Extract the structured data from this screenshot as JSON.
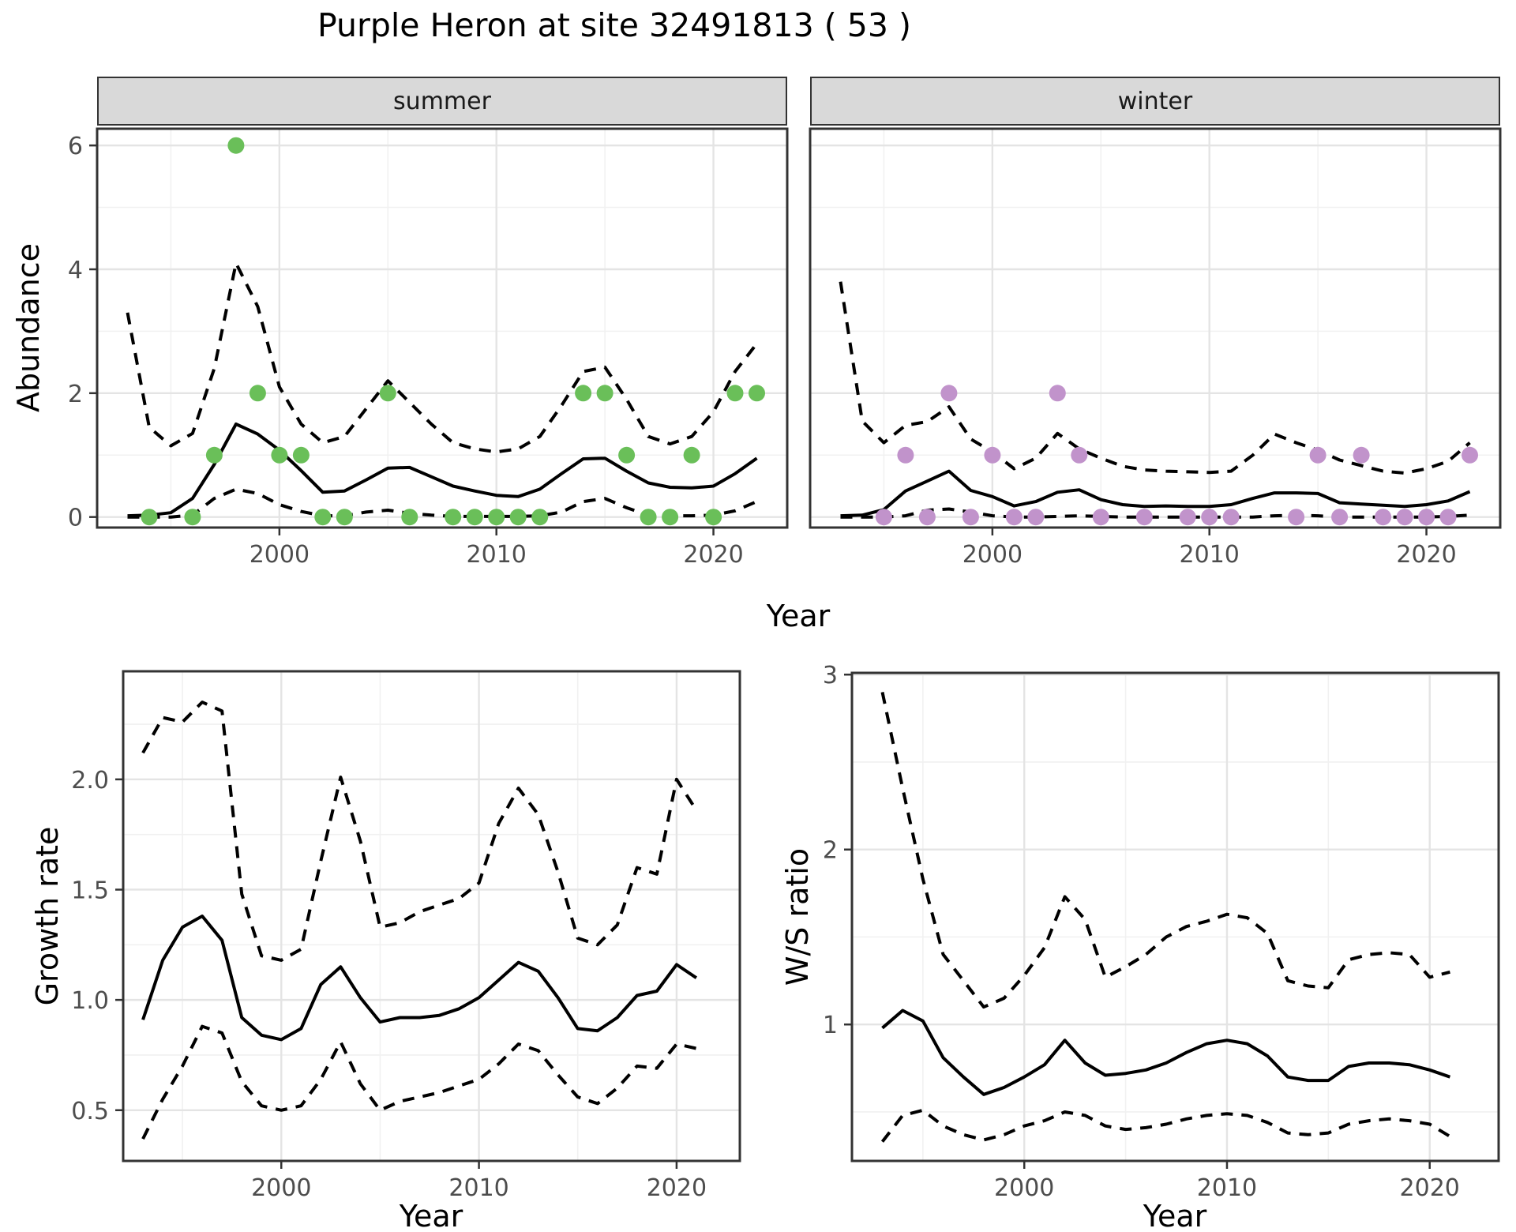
{
  "title": "Purple Heron at site 32491813 ( 53 )",
  "axis": {
    "x_title": "Year"
  },
  "colors": {
    "summer_points": "#6abf59",
    "winter_points": "#c193cb",
    "line": "#000000",
    "panel_border": "#333333",
    "grid_major": "#e4e4e4",
    "grid_minor": "#f1f1f1",
    "tick_text": "#4d4d4d",
    "strip_fill": "#d9d9d9"
  },
  "chart_data": [
    {
      "id": "summer",
      "type": "line",
      "facet_label": "summer",
      "ylabel": "Abundance",
      "xlabel": "Year",
      "xlim": [
        1991.6,
        2023.4
      ],
      "ylim": [
        -0.17,
        6.27
      ],
      "x_ticks": [
        2000,
        2010,
        2020
      ],
      "x_tick_labels": [
        "2000",
        "2010",
        "2020"
      ],
      "x_minor": [
        1995,
        2005,
        2015
      ],
      "y_ticks": [
        0,
        2,
        4,
        6
      ],
      "y_tick_labels": [
        "0",
        "2",
        "4",
        "6"
      ],
      "y_minor": [
        1,
        3,
        5
      ],
      "show_y_labels": true,
      "x": [
        1993,
        1994,
        1995,
        1996,
        1997,
        1998,
        1999,
        2000,
        2001,
        2002,
        2003,
        2004,
        2005,
        2006,
        2007,
        2008,
        2009,
        2010,
        2011,
        2012,
        2013,
        2014,
        2015,
        2016,
        2017,
        2018,
        2019,
        2020,
        2021,
        2022
      ],
      "series": [
        {
          "name": "fitted-median",
          "style": "solid",
          "values": [
            0.02,
            0.03,
            0.07,
            0.3,
            0.85,
            1.5,
            1.34,
            1.08,
            0.75,
            0.4,
            0.42,
            0.6,
            0.79,
            0.8,
            0.65,
            0.5,
            0.42,
            0.35,
            0.33,
            0.45,
            0.7,
            0.94,
            0.95,
            0.74,
            0.55,
            0.48,
            0.47,
            0.5,
            0.7,
            0.95
          ]
        },
        {
          "name": "upper-95ci",
          "style": "dashed",
          "values": [
            3.3,
            1.45,
            1.15,
            1.35,
            2.4,
            4.1,
            3.4,
            2.1,
            1.5,
            1.2,
            1.3,
            1.75,
            2.2,
            1.85,
            1.5,
            1.2,
            1.1,
            1.05,
            1.1,
            1.3,
            1.8,
            2.35,
            2.42,
            1.9,
            1.3,
            1.18,
            1.3,
            1.7,
            2.35,
            2.8
          ]
        },
        {
          "name": "lower-95ci",
          "style": "dashed",
          "values": [
            0.0,
            0.0,
            0.0,
            0.03,
            0.3,
            0.45,
            0.38,
            0.2,
            0.09,
            0.02,
            0.02,
            0.08,
            0.11,
            0.06,
            0.03,
            0.01,
            0.01,
            0.01,
            0.01,
            0.02,
            0.08,
            0.25,
            0.3,
            0.15,
            0.03,
            0.02,
            0.02,
            0.03,
            0.1,
            0.25
          ]
        }
      ],
      "points": {
        "color_key": "summer_points",
        "values": [
          [
            1994,
            0
          ],
          [
            1996,
            0
          ],
          [
            1997,
            1
          ],
          [
            1998,
            6
          ],
          [
            1999,
            2
          ],
          [
            2000,
            1
          ],
          [
            2001,
            1
          ],
          [
            2002,
            0
          ],
          [
            2003,
            0
          ],
          [
            2005,
            2
          ],
          [
            2006,
            0
          ],
          [
            2008,
            0
          ],
          [
            2009,
            0
          ],
          [
            2010,
            0
          ],
          [
            2011,
            0
          ],
          [
            2012,
            0
          ],
          [
            2014,
            2
          ],
          [
            2015,
            2
          ],
          [
            2016,
            1
          ],
          [
            2017,
            0
          ],
          [
            2018,
            0
          ],
          [
            2019,
            1
          ],
          [
            2020,
            0
          ],
          [
            2021,
            2
          ],
          [
            2022,
            2
          ]
        ]
      }
    },
    {
      "id": "winter",
      "type": "line",
      "facet_label": "winter",
      "ylabel": "Abundance",
      "xlabel": "Year",
      "xlim": [
        1991.6,
        2023.4
      ],
      "ylim": [
        -0.17,
        6.27
      ],
      "x_ticks": [
        2000,
        2010,
        2020
      ],
      "x_tick_labels": [
        "2000",
        "2010",
        "2020"
      ],
      "x_minor": [
        1995,
        2005,
        2015
      ],
      "y_ticks": [
        0,
        2,
        4,
        6
      ],
      "y_tick_labels": [
        "0",
        "2",
        "4",
        "6"
      ],
      "y_minor": [
        1,
        3,
        5
      ],
      "show_y_labels": false,
      "x": [
        1993,
        1994,
        1995,
        1996,
        1997,
        1998,
        1999,
        2000,
        2001,
        2002,
        2003,
        2004,
        2005,
        2006,
        2007,
        2008,
        2009,
        2010,
        2011,
        2012,
        2013,
        2014,
        2015,
        2016,
        2017,
        2018,
        2019,
        2020,
        2021,
        2022
      ],
      "series": [
        {
          "name": "fitted-median",
          "style": "solid",
          "values": [
            0.02,
            0.03,
            0.12,
            0.42,
            0.58,
            0.74,
            0.43,
            0.33,
            0.18,
            0.25,
            0.4,
            0.44,
            0.28,
            0.2,
            0.17,
            0.18,
            0.17,
            0.17,
            0.2,
            0.3,
            0.39,
            0.39,
            0.38,
            0.23,
            0.21,
            0.19,
            0.17,
            0.2,
            0.26,
            0.41
          ]
        },
        {
          "name": "upper-95ci",
          "style": "dashed",
          "values": [
            3.8,
            1.55,
            1.2,
            1.48,
            1.54,
            1.78,
            1.26,
            1.05,
            0.78,
            0.95,
            1.35,
            1.1,
            0.95,
            0.82,
            0.76,
            0.74,
            0.73,
            0.72,
            0.74,
            1.0,
            1.34,
            1.2,
            1.08,
            0.92,
            0.83,
            0.74,
            0.71,
            0.78,
            0.9,
            1.2
          ]
        },
        {
          "name": "lower-95ci",
          "style": "dashed",
          "values": [
            0.0,
            0.0,
            0.0,
            0.02,
            0.11,
            0.13,
            0.08,
            0.02,
            0.0,
            0.0,
            0.01,
            0.02,
            0.01,
            0.0,
            0.0,
            0.0,
            0.0,
            0.0,
            0.0,
            0.0,
            0.02,
            0.03,
            0.02,
            0.0,
            0.0,
            0.0,
            0.0,
            0.0,
            0.01,
            0.03
          ]
        }
      ],
      "points": {
        "color_key": "winter_points",
        "values": [
          [
            1995,
            0
          ],
          [
            1996,
            1
          ],
          [
            1997,
            0
          ],
          [
            1998,
            2
          ],
          [
            1999,
            0
          ],
          [
            2000,
            1
          ],
          [
            2001,
            0
          ],
          [
            2002,
            0
          ],
          [
            2003,
            2
          ],
          [
            2004,
            1
          ],
          [
            2005,
            0
          ],
          [
            2007,
            0
          ],
          [
            2009,
            0
          ],
          [
            2010,
            0
          ],
          [
            2011,
            0
          ],
          [
            2014,
            0
          ],
          [
            2015,
            1
          ],
          [
            2016,
            0
          ],
          [
            2017,
            1
          ],
          [
            2018,
            0
          ],
          [
            2019,
            0
          ],
          [
            2020,
            0
          ],
          [
            2021,
            0
          ],
          [
            2022,
            1
          ]
        ]
      }
    },
    {
      "id": "growth",
      "type": "line",
      "facet_label": "",
      "ylabel": "Growth rate",
      "xlabel": "Year",
      "xlim": [
        1992.0,
        2023.2
      ],
      "ylim": [
        0.27,
        2.49
      ],
      "x_ticks": [
        2000,
        2010,
        2020
      ],
      "x_tick_labels": [
        "2000",
        "2010",
        "2020"
      ],
      "x_minor": [
        1995,
        2005,
        2015
      ],
      "y_ticks": [
        0.5,
        1.0,
        1.5,
        2.0
      ],
      "y_tick_labels": [
        "0.5",
        "1.0",
        "1.5",
        "2.0"
      ],
      "y_minor": [
        0.75,
        1.25,
        1.75,
        2.25
      ],
      "show_y_labels": true,
      "x": [
        1993,
        1994,
        1995,
        1996,
        1997,
        1998,
        1999,
        2000,
        2001,
        2002,
        2003,
        2004,
        2005,
        2006,
        2007,
        2008,
        2009,
        2010,
        2011,
        2012,
        2013,
        2014,
        2015,
        2016,
        2017,
        2018,
        2019,
        2020,
        2021
      ],
      "series": [
        {
          "name": "fitted-median",
          "style": "solid",
          "values": [
            0.91,
            1.18,
            1.33,
            1.38,
            1.27,
            0.92,
            0.84,
            0.82,
            0.87,
            1.07,
            1.15,
            1.01,
            0.9,
            0.92,
            0.92,
            0.93,
            0.96,
            1.01,
            1.09,
            1.17,
            1.13,
            1.01,
            0.87,
            0.86,
            0.92,
            1.02,
            1.04,
            1.16,
            1.1
          ]
        },
        {
          "name": "upper-95ci",
          "style": "dashed",
          "values": [
            2.12,
            2.28,
            2.26,
            2.35,
            2.31,
            1.48,
            1.2,
            1.18,
            1.23,
            1.63,
            2.01,
            1.72,
            1.33,
            1.35,
            1.4,
            1.43,
            1.46,
            1.53,
            1.8,
            1.96,
            1.84,
            1.58,
            1.28,
            1.25,
            1.34,
            1.6,
            1.57,
            2.0,
            1.86
          ]
        },
        {
          "name": "lower-95ci",
          "style": "dashed",
          "values": [
            0.37,
            0.55,
            0.7,
            0.88,
            0.85,
            0.63,
            0.52,
            0.5,
            0.52,
            0.64,
            0.81,
            0.62,
            0.5,
            0.54,
            0.56,
            0.58,
            0.61,
            0.64,
            0.71,
            0.8,
            0.77,
            0.66,
            0.56,
            0.53,
            0.6,
            0.7,
            0.69,
            0.8,
            0.78
          ]
        }
      ],
      "points": {
        "color_key": "",
        "values": []
      }
    },
    {
      "id": "ws",
      "type": "line",
      "facet_label": "",
      "ylabel": "W/S ratio",
      "xlabel": "Year",
      "xlim": [
        1991.5,
        2023.4
      ],
      "ylim": [
        0.22,
        3.01
      ],
      "x_ticks": [
        2000,
        2010,
        2020
      ],
      "x_tick_labels": [
        "2000",
        "2010",
        "2020"
      ],
      "x_minor": [
        1995,
        2005,
        2015
      ],
      "y_ticks": [
        1,
        2,
        3
      ],
      "y_tick_labels": [
        "1",
        "2",
        "3"
      ],
      "y_minor": [
        0.5,
        1.5,
        2.5
      ],
      "show_y_labels": true,
      "x": [
        1993,
        1994,
        1995,
        1996,
        1997,
        1998,
        1999,
        2000,
        2001,
        2002,
        2003,
        2004,
        2005,
        2006,
        2007,
        2008,
        2009,
        2010,
        2011,
        2012,
        2013,
        2014,
        2015,
        2016,
        2017,
        2018,
        2019,
        2020,
        2021
      ],
      "series": [
        {
          "name": "fitted-median",
          "style": "solid",
          "values": [
            0.98,
            1.08,
            1.02,
            0.81,
            0.7,
            0.6,
            0.64,
            0.7,
            0.77,
            0.91,
            0.78,
            0.71,
            0.72,
            0.74,
            0.78,
            0.84,
            0.89,
            0.91,
            0.89,
            0.82,
            0.7,
            0.68,
            0.68,
            0.76,
            0.78,
            0.78,
            0.77,
            0.74,
            0.7
          ]
        },
        {
          "name": "upper-95ci",
          "style": "dashed",
          "values": [
            2.9,
            2.35,
            1.83,
            1.4,
            1.25,
            1.1,
            1.15,
            1.28,
            1.44,
            1.73,
            1.6,
            1.27,
            1.33,
            1.4,
            1.5,
            1.56,
            1.59,
            1.63,
            1.61,
            1.52,
            1.25,
            1.22,
            1.21,
            1.37,
            1.4,
            1.41,
            1.4,
            1.27,
            1.3
          ]
        },
        {
          "name": "lower-95ci",
          "style": "dashed",
          "values": [
            0.33,
            0.48,
            0.51,
            0.42,
            0.37,
            0.34,
            0.37,
            0.42,
            0.45,
            0.5,
            0.48,
            0.42,
            0.4,
            0.41,
            0.43,
            0.46,
            0.48,
            0.49,
            0.48,
            0.44,
            0.38,
            0.37,
            0.38,
            0.43,
            0.45,
            0.46,
            0.45,
            0.43,
            0.36
          ]
        }
      ],
      "points": {
        "color_key": "",
        "values": []
      }
    }
  ]
}
